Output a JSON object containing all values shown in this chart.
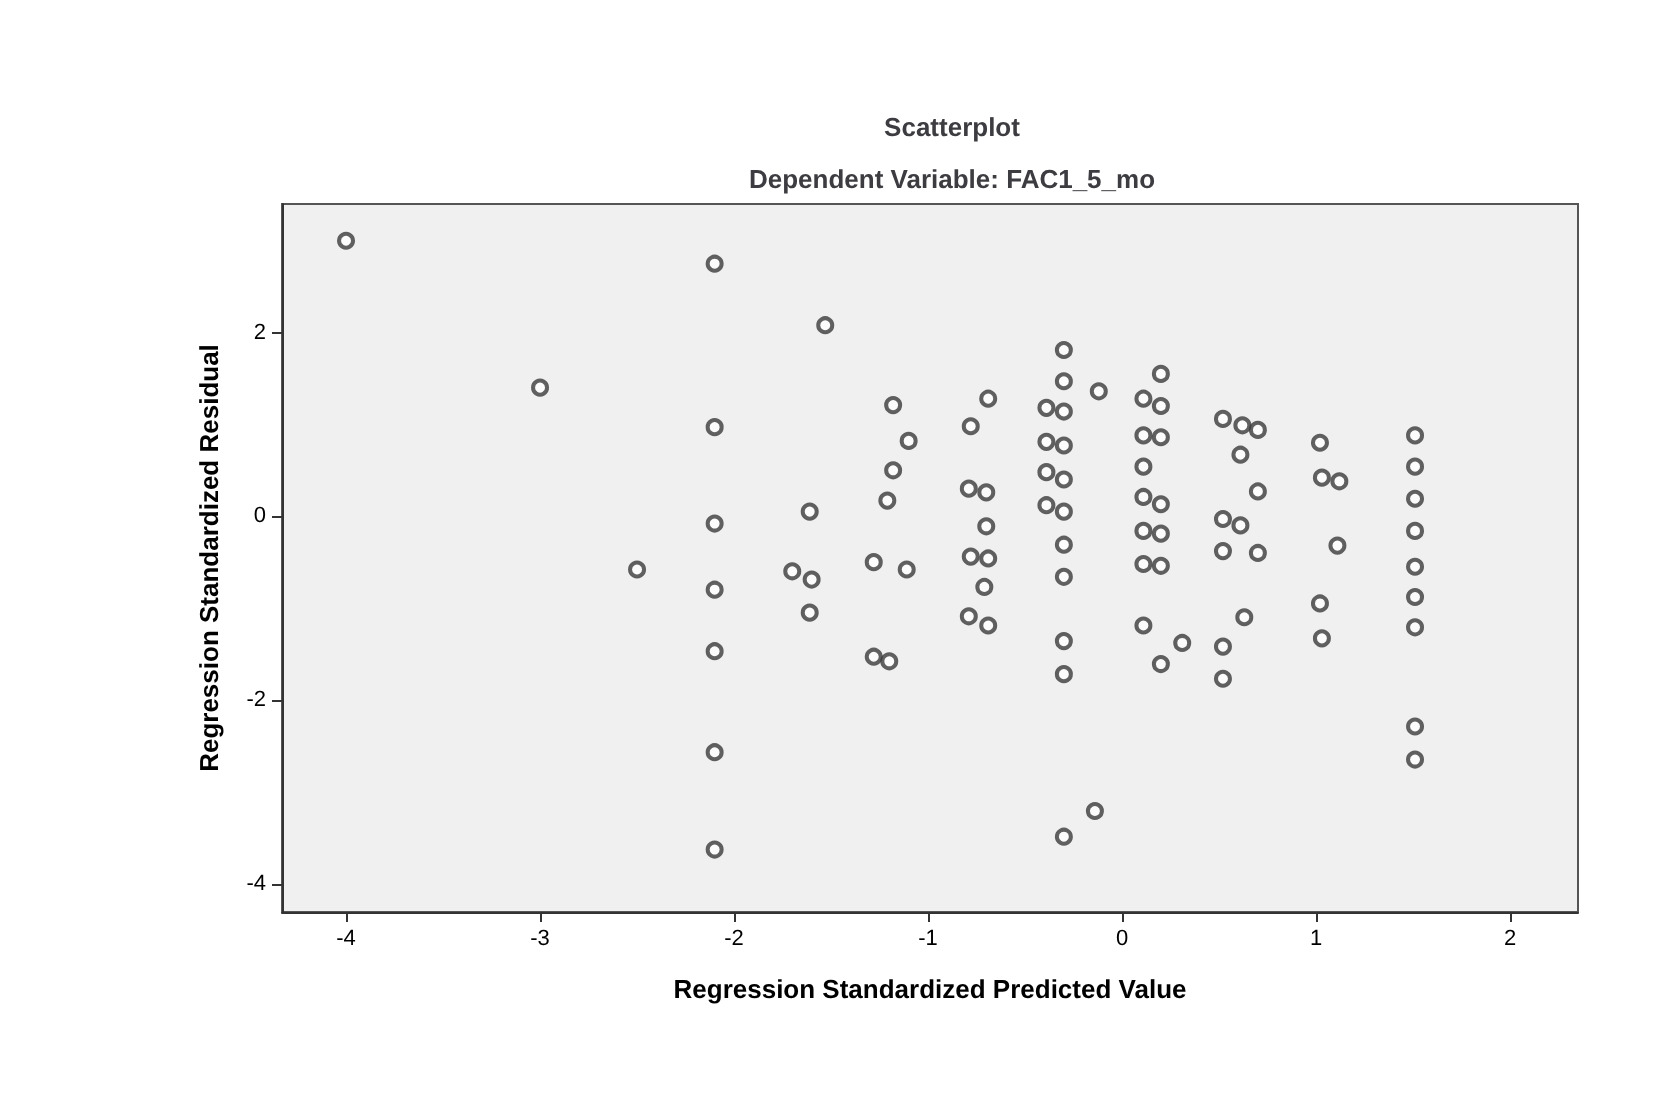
{
  "chart_data": {
    "type": "scatter",
    "title": "Scatterplot",
    "subtitle": "Dependent Variable: FAC1_5_mo",
    "xlabel": "Regression Standardized Predicted Value",
    "ylabel": "Regression Standardized Residual",
    "xlim": [
      -4.33,
      2.35
    ],
    "ylim": [
      -4.31,
      3.4
    ],
    "xticks": [
      -4,
      -3,
      -2,
      -1,
      0,
      1,
      2
    ],
    "yticks": [
      -4,
      -2,
      0,
      2
    ],
    "grid": false,
    "marker": "circle",
    "series": [
      {
        "color": "#3a3a3a",
        "x": [
          -4,
          -3,
          -2.5,
          -2.1,
          -2.1,
          -2.1,
          -2.1,
          -2.1,
          -2.1,
          -2.1,
          -1.53,
          -1.61,
          -1.7,
          -1.6,
          -1.61,
          -1.18,
          -1.1,
          -1.18,
          -1.21,
          -1.28,
          -1.11,
          -1.28,
          -1.2,
          -0.69,
          -0.78,
          -0.79,
          -0.7,
          -0.7,
          -0.78,
          -0.69,
          -0.71,
          -0.79,
          -0.69,
          -0.3,
          -0.3,
          -0.3,
          -0.3,
          -0.3,
          -0.3,
          -0.3,
          -0.3,
          -0.3,
          -0.3,
          -0.3,
          -0.39,
          -0.39,
          -0.39,
          -0.39,
          -0.12,
          -0.14,
          0.11,
          0.11,
          0.11,
          0.11,
          0.11,
          0.11,
          0.11,
          0.2,
          0.2,
          0.2,
          0.2,
          0.2,
          0.2,
          0.2,
          0.31,
          0.52,
          0.62,
          0.7,
          0.61,
          0.7,
          0.52,
          0.61,
          0.52,
          0.7,
          0.63,
          0.52,
          0.52,
          1.02,
          1.03,
          1.12,
          1.11,
          1.02,
          1.03,
          1.51,
          1.51,
          1.51,
          1.51,
          1.51,
          1.51,
          1.51,
          1.51,
          1.51
        ],
        "values": [
          3.0,
          1.4,
          -0.58,
          2.75,
          0.97,
          -0.08,
          -0.8,
          -1.47,
          -2.57,
          -3.63,
          2.08,
          0.05,
          -0.6,
          -0.69,
          -1.05,
          1.21,
          0.82,
          0.5,
          0.17,
          -0.5,
          -0.58,
          -1.53,
          -1.58,
          1.28,
          0.98,
          0.3,
          0.26,
          -0.11,
          -0.44,
          -0.46,
          -0.77,
          -1.09,
          -1.19,
          1.81,
          1.47,
          1.14,
          0.77,
          0.4,
          0.05,
          -0.31,
          -0.66,
          -1.36,
          -1.72,
          -3.49,
          1.18,
          0.81,
          0.48,
          0.12,
          1.36,
          -3.21,
          1.28,
          0.88,
          0.54,
          0.21,
          -0.16,
          -0.52,
          -1.19,
          1.55,
          1.2,
          0.86,
          0.13,
          -0.19,
          -0.54,
          -1.61,
          -1.38,
          1.06,
          0.99,
          0.94,
          0.67,
          0.27,
          -0.03,
          -0.1,
          -0.38,
          -0.4,
          -1.1,
          -1.42,
          -1.77,
          0.8,
          0.42,
          0.38,
          -0.32,
          -0.95,
          -1.33,
          0.88,
          0.54,
          0.19,
          -0.16,
          -0.55,
          -0.88,
          -1.21,
          -2.29,
          -2.65
        ]
      }
    ]
  }
}
